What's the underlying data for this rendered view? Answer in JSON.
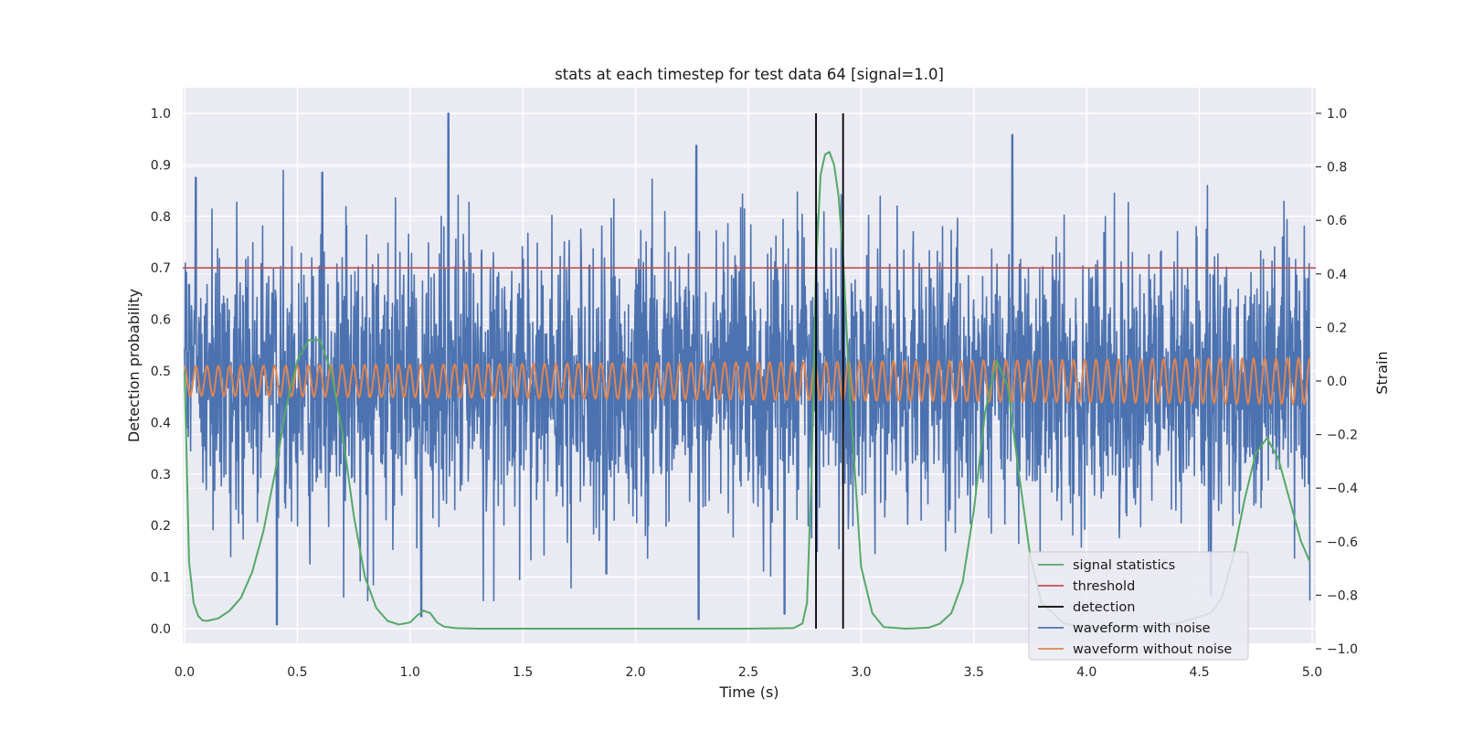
{
  "chart_data": {
    "type": "line",
    "title": "stats at each timestep for test data 64 [signal=1.0]",
    "xlabel": "Time (s)",
    "ylabel": "Detection probability",
    "y2label": "Strain",
    "xlim": [
      0.0,
      5.05
    ],
    "ylim": [
      -0.05,
      1.05
    ],
    "y2lim": [
      -1.05,
      1.1
    ],
    "x_ticks": [
      0.0,
      0.5,
      1.0,
      1.5,
      2.0,
      2.5,
      3.0,
      3.5,
      4.0,
      4.5,
      5.0
    ],
    "x_tick_labels": [
      "0.0",
      "0.5",
      "1.0",
      "1.5",
      "2.0",
      "2.5",
      "3.0",
      "3.5",
      "4.0",
      "4.5",
      "5.0"
    ],
    "y_ticks": [
      0.0,
      0.1,
      0.2,
      0.3,
      0.4,
      0.5,
      0.6,
      0.7,
      0.8,
      0.9,
      1.0
    ],
    "y_tick_labels": [
      "0.0",
      "0.1",
      "0.2",
      "0.3",
      "0.4",
      "0.5",
      "0.6",
      "0.7",
      "0.8",
      "0.9",
      "1.0"
    ],
    "y2_ticks": [
      -1.0,
      -0.8,
      -0.6,
      -0.4,
      -0.2,
      0.0,
      0.2,
      0.4,
      0.6,
      0.8,
      1.0
    ],
    "y2_tick_labels": [
      "−1.0",
      "−0.8",
      "−0.6",
      "−0.4",
      "−0.2",
      "0.0",
      "0.2",
      "0.4",
      "0.6",
      "0.8",
      "1.0"
    ],
    "grid": true,
    "legend_position": "lower-right",
    "series": [
      {
        "name": "signal statistics",
        "axis": "left",
        "color": "#55a868",
        "x": [
          0.0,
          0.02,
          0.04,
          0.06,
          0.08,
          0.1,
          0.15,
          0.2,
          0.25,
          0.3,
          0.35,
          0.4,
          0.45,
          0.5,
          0.55,
          0.6,
          0.65,
          0.7,
          0.75,
          0.8,
          0.85,
          0.9,
          0.95,
          1.0,
          1.03,
          1.06,
          1.09,
          1.12,
          1.15,
          1.2,
          1.3,
          1.5,
          2.0,
          2.5,
          2.7,
          2.74,
          2.76,
          2.78,
          2.8,
          2.82,
          2.84,
          2.86,
          2.88,
          2.9,
          2.92,
          2.95,
          3.0,
          3.05,
          3.1,
          3.2,
          3.3,
          3.35,
          3.4,
          3.45,
          3.5,
          3.55,
          3.6,
          3.65,
          3.7,
          3.75,
          3.8,
          3.9,
          4.0,
          4.2,
          4.4,
          4.55,
          4.6,
          4.65,
          4.7,
          4.75,
          4.8,
          4.85,
          4.9,
          4.95,
          4.99
        ],
        "values": [
          0.5,
          0.13,
          0.05,
          0.025,
          0.016,
          0.015,
          0.02,
          0.035,
          0.06,
          0.11,
          0.19,
          0.3,
          0.43,
          0.52,
          0.56,
          0.56,
          0.5,
          0.38,
          0.22,
          0.1,
          0.04,
          0.015,
          0.008,
          0.012,
          0.025,
          0.035,
          0.03,
          0.012,
          0.004,
          0.001,
          0.0,
          0.0,
          0.0,
          0.0,
          0.001,
          0.01,
          0.05,
          0.3,
          0.7,
          0.88,
          0.92,
          0.925,
          0.9,
          0.84,
          0.72,
          0.45,
          0.12,
          0.03,
          0.003,
          0.0,
          0.002,
          0.01,
          0.03,
          0.09,
          0.23,
          0.42,
          0.52,
          0.47,
          0.3,
          0.14,
          0.05,
          0.01,
          0.002,
          0.002,
          0.01,
          0.03,
          0.06,
          0.14,
          0.25,
          0.34,
          0.37,
          0.33,
          0.25,
          0.17,
          0.13
        ]
      },
      {
        "name": "threshold",
        "axis": "left",
        "color": "#c44e52",
        "x": [
          0.0,
          5.05
        ],
        "values": [
          0.7,
          0.7
        ]
      },
      {
        "name": "detection",
        "axis": "left",
        "color": "#000000",
        "x_positions": [
          2.8,
          2.92
        ],
        "values": [
          0.0,
          1.0
        ]
      },
      {
        "name": "waveform with noise",
        "axis": "right",
        "color": "#4c72b0",
        "x": [
          0.0,
          4.99
        ],
        "description_range": [
          -1.0,
          1.0
        ],
        "peaks": [
          {
            "x": 0.02,
            "y": 0.36
          },
          {
            "x": 0.05,
            "y": 0.76
          },
          {
            "x": 0.41,
            "y": -0.91
          },
          {
            "x": 0.61,
            "y": 0.78
          },
          {
            "x": 1.05,
            "y": -0.88
          },
          {
            "x": 1.17,
            "y": 1.0
          },
          {
            "x": 1.87,
            "y": -0.72
          },
          {
            "x": 2.27,
            "y": 0.88
          },
          {
            "x": 2.28,
            "y": -0.89
          },
          {
            "x": 2.66,
            "y": -0.87
          },
          {
            "x": 3.67,
            "y": 0.92
          },
          {
            "x": 4.55,
            "y": -0.8
          }
        ],
        "values_noise_std": 0.25
      },
      {
        "name": "waveform without noise",
        "axis": "right",
        "color": "#dd8452",
        "x": [
          0.0,
          4.99
        ],
        "amplitude_start": 0.055,
        "amplitude_end": 0.085,
        "cycles": 100,
        "offset": 0.0
      }
    ]
  }
}
